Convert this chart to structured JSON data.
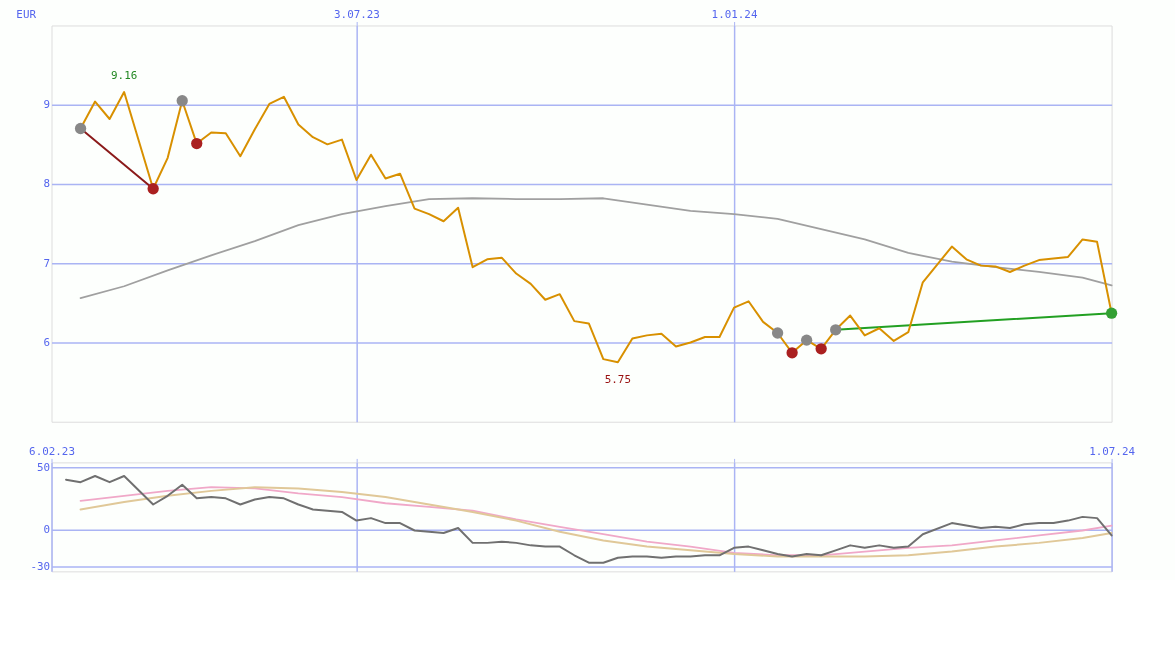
{
  "chart_data": [
    {
      "type": "line",
      "ylabel": "EUR",
      "xlim": [
        "2023-02-06",
        "2024-07-01"
      ],
      "xticks": [
        {
          "value": "2023-07-03",
          "label": "3.07.23"
        },
        {
          "value": "2024-01-01",
          "label": "1.01.24"
        }
      ],
      "ylim": [
        5,
        10
      ],
      "yticks": [
        6,
        7,
        8,
        9
      ],
      "grid": true,
      "line_style": "solid",
      "annotations": [
        {
          "text": "9.16",
          "x": "2023-03-13",
          "y": 9.16
        },
        {
          "text": "5.75",
          "x": "2023-11-06",
          "y": 5.75
        }
      ],
      "series": [
        {
          "color": "#a0a0a0",
          "x": [
            "2023-02-20",
            "2023-03-13",
            "2023-04-03",
            "2023-04-24",
            "2023-05-15",
            "2023-06-05",
            "2023-06-26",
            "2023-07-17",
            "2023-08-07",
            "2023-08-28",
            "2023-09-18",
            "2023-10-09",
            "2023-10-30",
            "2023-11-20",
            "2023-12-11",
            "2024-01-01",
            "2024-01-22",
            "2024-02-12",
            "2024-03-04",
            "2024-03-25",
            "2024-04-15",
            "2024-05-06",
            "2024-05-27",
            "2024-06-17",
            "2024-07-01"
          ],
          "values": [
            6.56,
            6.71,
            6.91,
            7.1,
            7.28,
            7.48,
            7.62,
            7.72,
            7.81,
            7.82,
            7.81,
            7.81,
            7.82,
            7.74,
            7.66,
            7.62,
            7.56,
            7.43,
            7.3,
            7.13,
            7.02,
            6.95,
            6.89,
            6.82,
            6.72
          ]
        },
        {
          "color": "#8b1a1a",
          "x": [
            "2023-02-20",
            "2023-03-27"
          ],
          "values": [
            8.7,
            7.94
          ]
        },
        {
          "color": "#22a022",
          "x": [
            "2024-02-19",
            "2024-07-01"
          ],
          "values": [
            6.16,
            6.37
          ]
        },
        {
          "color": "#d89000",
          "x": [
            "2023-02-20",
            "2023-02-27",
            "2023-03-06",
            "2023-03-13",
            "2023-03-27",
            "2023-04-03",
            "2023-04-10",
            "2023-04-17",
            "2023-04-24",
            "2023-05-01",
            "2023-05-08",
            "2023-05-15",
            "2023-05-22",
            "2023-05-29",
            "2023-06-05",
            "2023-06-12",
            "2023-06-19",
            "2023-06-26",
            "2023-07-03",
            "2023-07-10",
            "2023-07-17",
            "2023-07-24",
            "2023-07-31",
            "2023-08-07",
            "2023-08-14",
            "2023-08-21",
            "2023-08-28",
            "2023-09-04",
            "2023-09-11",
            "2023-09-18",
            "2023-09-25",
            "2023-10-02",
            "2023-10-09",
            "2023-10-16",
            "2023-10-23",
            "2023-10-30",
            "2023-11-06",
            "2023-11-13",
            "2023-11-20",
            "2023-11-27",
            "2023-12-04",
            "2023-12-11",
            "2023-12-18",
            "2023-12-25",
            "2024-01-01",
            "2024-01-08",
            "2024-01-15",
            "2024-01-22",
            "2024-01-29",
            "2024-02-05",
            "2024-02-12",
            "2024-02-19",
            "2024-02-26",
            "2024-03-04",
            "2024-03-11",
            "2024-03-18",
            "2024-03-25",
            "2024-04-01",
            "2024-04-15",
            "2024-04-22",
            "2024-04-29",
            "2024-05-06",
            "2024-05-13",
            "2024-05-20",
            "2024-05-27",
            "2024-06-03",
            "2024-06-10",
            "2024-06-17",
            "2024-06-24",
            "2024-07-01"
          ],
          "values": [
            8.7,
            9.04,
            8.82,
            9.16,
            7.94,
            8.33,
            9.05,
            8.51,
            8.65,
            8.64,
            8.35,
            8.69,
            9.01,
            9.1,
            8.75,
            8.59,
            8.5,
            8.56,
            8.05,
            8.37,
            8.07,
            8.13,
            7.69,
            7.62,
            7.53,
            7.7,
            6.95,
            7.05,
            7.07,
            6.87,
            6.74,
            6.54,
            6.61,
            6.27,
            6.24,
            5.79,
            5.75,
            6.05,
            6.09,
            6.11,
            5.95,
            6.0,
            6.07,
            6.07,
            6.44,
            6.52,
            6.26,
            6.12,
            5.87,
            6.03,
            5.92,
            6.16,
            6.34,
            6.09,
            6.18,
            6.02,
            6.13,
            6.76,
            7.21,
            7.05,
            6.97,
            6.96,
            6.89,
            6.97,
            7.04,
            7.06,
            7.08,
            7.3,
            7.27,
            6.37
          ]
        },
        {
          "type": "scatter",
          "x": [
            "2023-02-20",
            "2023-03-27",
            "2023-04-10",
            "2023-04-17",
            "2024-01-22",
            "2024-01-29",
            "2024-02-05",
            "2024-02-12",
            "2024-02-19",
            "2024-07-01"
          ],
          "values": [
            8.7,
            7.94,
            9.05,
            8.51,
            6.12,
            5.87,
            6.03,
            5.92,
            6.16,
            6.37
          ],
          "colors": [
            "#888888",
            "#aa2020",
            "#888888",
            "#aa2020",
            "#888888",
            "#aa2020",
            "#888888",
            "#aa2020",
            "#888888",
            "#33a033"
          ]
        }
      ]
    },
    {
      "type": "line",
      "xlim": [
        "2023-02-06",
        "2024-07-01"
      ],
      "xticks": [
        {
          "value": "2023-02-06",
          "label": "6.02.23"
        },
        {
          "value": "2023-07-03",
          "label": null
        },
        {
          "value": "2024-01-01",
          "label": null
        },
        {
          "value": "2024-07-01",
          "label": "1.07.24"
        }
      ],
      "ylim": [
        -34,
        54
      ],
      "yticks": [
        -30,
        0,
        50
      ],
      "grid": true,
      "line_style": "solid",
      "series": [
        {
          "color": "#f0a8c8",
          "x": [
            "2023-02-20",
            "2023-04-03",
            "2023-04-24",
            "2023-05-15",
            "2023-06-05",
            "2023-06-26",
            "2023-07-17",
            "2023-08-07",
            "2023-08-28",
            "2023-09-18",
            "2023-10-09",
            "2023-10-30",
            "2023-11-20",
            "2023-12-11",
            "2024-01-01",
            "2024-01-22",
            "2024-02-12",
            "2024-03-04",
            "2024-03-25",
            "2024-04-15",
            "2024-05-06",
            "2024-05-27",
            "2024-06-17",
            "2024-07-01"
          ],
          "values": [
            23,
            31,
            34,
            33,
            29,
            26,
            21,
            18,
            15,
            8,
            2,
            -4,
            -10,
            -14,
            -19,
            -21,
            -21,
            -18,
            -15,
            -13,
            -9,
            -5,
            -1,
            3
          ]
        },
        {
          "color": "#e0c898",
          "x": [
            "2023-02-20",
            "2023-03-13",
            "2023-04-03",
            "2023-04-24",
            "2023-05-15",
            "2023-06-05",
            "2023-06-26",
            "2023-07-17",
            "2023-08-07",
            "2023-08-28",
            "2023-09-18",
            "2023-10-09",
            "2023-10-30",
            "2023-11-20",
            "2023-12-11",
            "2024-01-01",
            "2024-01-22",
            "2024-02-12",
            "2024-03-04",
            "2024-03-25",
            "2024-04-15",
            "2024-05-06",
            "2024-05-27",
            "2024-06-17",
            "2024-07-01"
          ],
          "values": [
            16,
            22,
            27,
            31,
            34,
            33,
            30,
            26,
            20,
            14,
            7,
            -2,
            -9,
            -14,
            -17,
            -20,
            -22,
            -22,
            -22,
            -21,
            -18,
            -14,
            -11,
            -7,
            -3
          ]
        },
        {
          "color": "#707070",
          "x": [
            "2023-02-13",
            "2023-02-20",
            "2023-02-27",
            "2023-03-06",
            "2023-03-13",
            "2023-03-27",
            "2023-04-03",
            "2023-04-10",
            "2023-04-17",
            "2023-04-24",
            "2023-05-01",
            "2023-05-08",
            "2023-05-15",
            "2023-05-22",
            "2023-05-29",
            "2023-06-05",
            "2023-06-12",
            "2023-06-19",
            "2023-06-26",
            "2023-07-03",
            "2023-07-10",
            "2023-07-17",
            "2023-07-24",
            "2023-07-31",
            "2023-08-07",
            "2023-08-14",
            "2023-08-21",
            "2023-08-28",
            "2023-09-04",
            "2023-09-11",
            "2023-09-18",
            "2023-09-25",
            "2023-10-02",
            "2023-10-09",
            "2023-10-16",
            "2023-10-23",
            "2023-10-30",
            "2023-11-06",
            "2023-11-13",
            "2023-11-20",
            "2023-11-27",
            "2023-12-04",
            "2023-12-11",
            "2023-12-18",
            "2023-12-25",
            "2024-01-01",
            "2024-01-08",
            "2024-01-15",
            "2024-01-22",
            "2024-01-29",
            "2024-02-05",
            "2024-02-12",
            "2024-02-19",
            "2024-02-26",
            "2024-03-04",
            "2024-03-11",
            "2024-03-18",
            "2024-03-25",
            "2024-04-01",
            "2024-04-15",
            "2024-04-22",
            "2024-04-29",
            "2024-05-06",
            "2024-05-13",
            "2024-05-20",
            "2024-05-27",
            "2024-06-03",
            "2024-06-10",
            "2024-06-17",
            "2024-06-24",
            "2024-07-01"
          ],
          "values": [
            40,
            38,
            43,
            38,
            43,
            20,
            27,
            36,
            25,
            26,
            25,
            20,
            24,
            26,
            25,
            20,
            16,
            15,
            14,
            7,
            9,
            5,
            5,
            -1,
            -2,
            -3,
            1,
            -11,
            -11,
            -10,
            -11,
            -13,
            -14,
            -14,
            -21,
            -27,
            -27,
            -23,
            -22,
            -22,
            -23,
            -22,
            -22,
            -21,
            -21,
            -15,
            -14,
            -17,
            -20,
            -22,
            -20,
            -21,
            -17,
            -13,
            -15,
            -13,
            -15,
            -14,
            -4,
            5,
            3,
            1,
            2,
            1,
            4,
            5,
            5,
            7,
            10,
            9,
            -5
          ]
        }
      ]
    }
  ]
}
